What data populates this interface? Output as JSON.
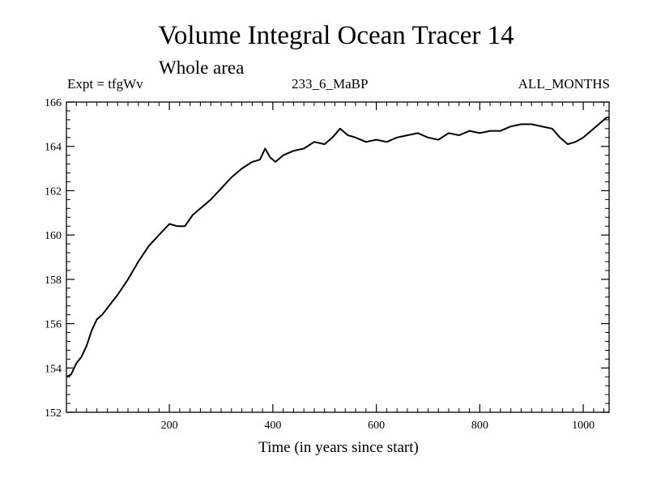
{
  "header": {
    "title": "Volume Integral Ocean Tracer 14",
    "subtitle": "Whole area",
    "expt": "Expt = tfgWv",
    "case_id": "233_6_MaBP",
    "months": "ALL_MONTHS"
  },
  "chart_data": {
    "type": "line",
    "title": "Volume Integral Ocean Tracer 14",
    "subtitle": "Whole area",
    "xlabel": "Time (in years since start)",
    "ylabel": "",
    "xlim": [
      1,
      1050
    ],
    "ylim": [
      152,
      166
    ],
    "xticks": [
      200,
      400,
      600,
      800,
      1000
    ],
    "yticks": [
      152,
      154,
      156,
      158,
      160,
      162,
      164,
      166
    ],
    "grid": false,
    "series": [
      {
        "name": "Tracer 14",
        "color": "#000000",
        "x": [
          1,
          10,
          20,
          30,
          40,
          50,
          60,
          70,
          80,
          90,
          100,
          120,
          140,
          160,
          180,
          200,
          215,
          230,
          245,
          260,
          280,
          300,
          320,
          340,
          360,
          375,
          385,
          395,
          405,
          420,
          440,
          460,
          480,
          500,
          515,
          530,
          545,
          560,
          580,
          600,
          620,
          640,
          660,
          680,
          700,
          720,
          740,
          760,
          780,
          800,
          820,
          840,
          860,
          880,
          900,
          920,
          940,
          955,
          970,
          985,
          1000,
          1015,
          1030,
          1045,
          1050
        ],
        "values": [
          153.6,
          153.7,
          154.2,
          154.5,
          155.0,
          155.7,
          156.2,
          156.4,
          156.7,
          157.0,
          157.3,
          158.0,
          158.8,
          159.5,
          160.0,
          160.5,
          160.4,
          160.4,
          160.9,
          161.2,
          161.6,
          162.1,
          162.6,
          163.0,
          163.3,
          163.4,
          163.9,
          163.5,
          163.3,
          163.6,
          163.8,
          163.9,
          164.2,
          164.1,
          164.4,
          164.8,
          164.5,
          164.4,
          164.2,
          164.3,
          164.2,
          164.4,
          164.5,
          164.6,
          164.4,
          164.3,
          164.6,
          164.5,
          164.7,
          164.6,
          164.7,
          164.7,
          164.9,
          165.0,
          165.0,
          164.9,
          164.8,
          164.4,
          164.1,
          164.2,
          164.4,
          164.7,
          165.0,
          165.3,
          165.3
        ]
      }
    ]
  }
}
